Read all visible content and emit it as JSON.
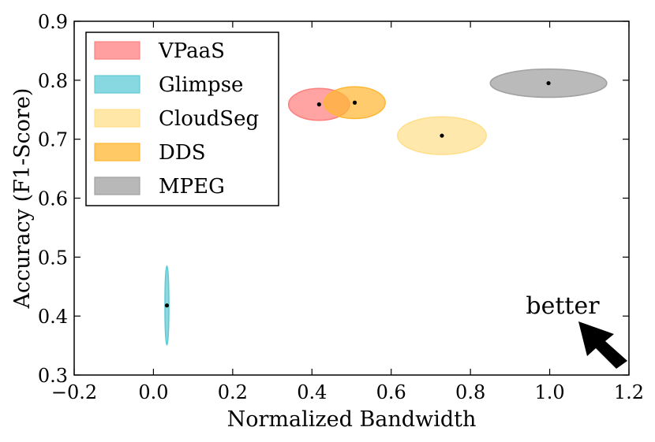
{
  "chart_data": {
    "type": "scatter",
    "title": "",
    "xlabel": "Normalized Bandwidth",
    "ylabel": "Accuracy (F1-Score)",
    "xlim": [
      -0.2,
      1.2
    ],
    "ylim": [
      0.3,
      0.9
    ],
    "xticks": [
      -0.2,
      0.0,
      0.2,
      0.4,
      0.6,
      0.8,
      1.0,
      1.2
    ],
    "yticks": [
      0.3,
      0.4,
      0.5,
      0.6,
      0.7,
      0.8,
      0.9
    ],
    "xtick_labels": [
      "−0.2",
      "0.0",
      "0.2",
      "0.4",
      "0.6",
      "0.8",
      "1.0",
      "1.2"
    ],
    "ytick_labels": [
      "0.3",
      "0.4",
      "0.5",
      "0.6",
      "0.7",
      "0.8",
      "0.9"
    ],
    "legend_position": "top-left",
    "annotation": "better",
    "series": [
      {
        "name": "VPaaS",
        "color": "#ff7f7f",
        "x": 0.418,
        "y": 0.759,
        "x_spread": 0.077,
        "y_spread": 0.027
      },
      {
        "name": "Glimpse",
        "color": "#5fcbd6",
        "x": 0.034,
        "y": 0.418,
        "x_spread": 0.005,
        "y_spread": 0.067
      },
      {
        "name": "CloudSeg",
        "color": "#ffdf8a",
        "x": 0.728,
        "y": 0.706,
        "x_spread": 0.112,
        "y_spread": 0.032
      },
      {
        "name": "DDS",
        "color": "#ffb733",
        "x": 0.508,
        "y": 0.762,
        "x_spread": 0.077,
        "y_spread": 0.027
      },
      {
        "name": "MPEG",
        "color": "#a0a0a0",
        "x": 0.997,
        "y": 0.795,
        "x_spread": 0.147,
        "y_spread": 0.024
      }
    ]
  }
}
